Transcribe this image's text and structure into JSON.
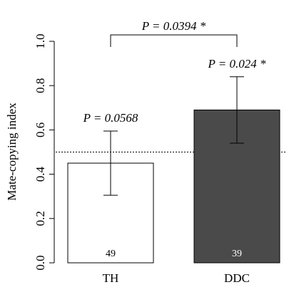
{
  "chart_data": {
    "type": "bar",
    "ylabel": "Mate-copying index",
    "xlabel": "",
    "ylim": [
      0,
      1.0
    ],
    "yticks": [
      0.0,
      0.2,
      0.4,
      0.6,
      0.8,
      1.0
    ],
    "ytick_labels": [
      "0.0",
      "0.2",
      "0.4",
      "0.6",
      "0.8",
      "1.0"
    ],
    "reference_line": 0.5,
    "categories": [
      "TH",
      "DDC"
    ],
    "values": [
      0.45,
      0.69
    ],
    "error_low": [
      0.305,
      0.54
    ],
    "error_high": [
      0.595,
      0.84
    ],
    "sample_sizes": [
      "49",
      "39"
    ],
    "bar_colors": [
      "#ffffff",
      "#4a4a4a"
    ],
    "n_label_colors": [
      "#000000",
      "#ffffff"
    ],
    "annotations": [
      "P = 0.0568",
      "P = 0.024 *"
    ],
    "comparison_label": "P = 0.0394 *"
  }
}
